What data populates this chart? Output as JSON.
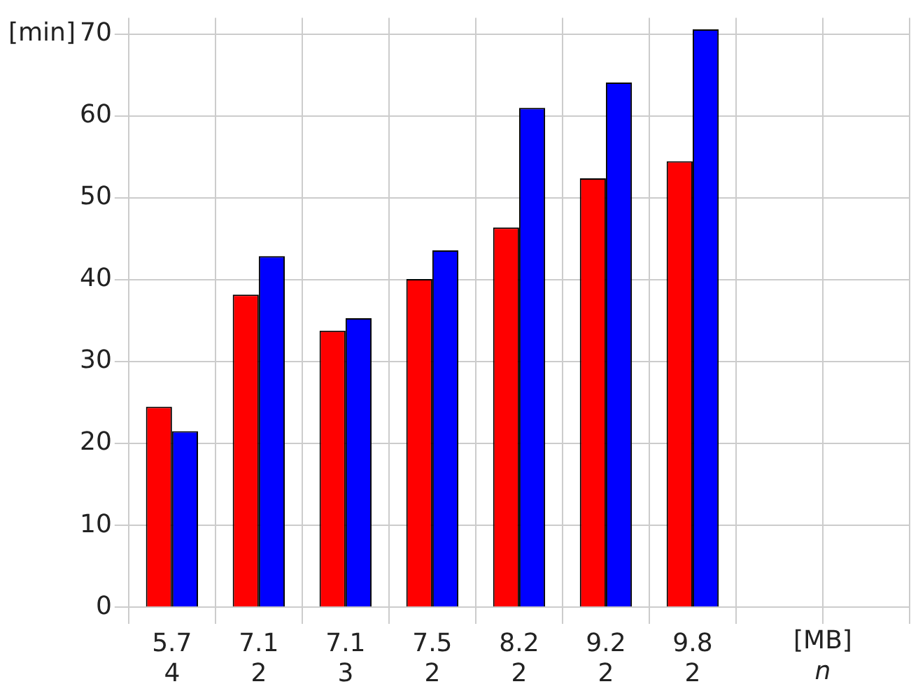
{
  "chart_data": {
    "type": "bar",
    "ylabel": "[min]",
    "xlabel": "[MB]\nn",
    "categories": [
      "5.7\n4",
      "7.1\n2",
      "7.1\n3",
      "7.5\n2",
      "8.2\n2",
      "9.2\n2",
      "9.8\n2",
      null,
      null
    ],
    "series": [
      {
        "color": "#ff0000",
        "values": [
          24.5,
          38.2,
          33.8,
          40.1,
          46.4,
          52.4,
          54.5,
          null,
          null
        ]
      },
      {
        "color": "#0000ff",
        "values": [
          21.5,
          42.9,
          35.3,
          43.6,
          61.0,
          64.1,
          70.6,
          null,
          null
        ]
      }
    ],
    "ylim": [
      -2,
      72
    ],
    "yticks": [
      0,
      10,
      20,
      30,
      40,
      50,
      60,
      70
    ],
    "grid": true,
    "legend": false
  }
}
